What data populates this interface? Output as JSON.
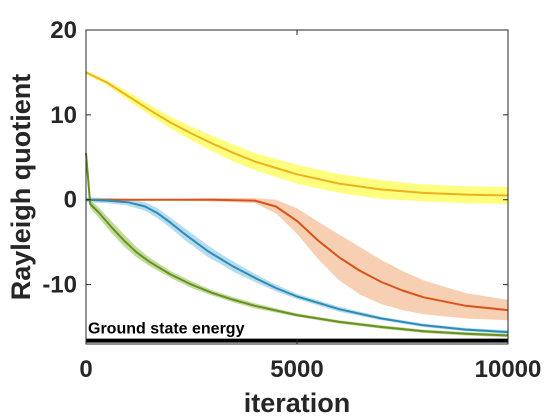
{
  "chart_data": {
    "type": "line",
    "title": "",
    "xlabel": "iteration",
    "ylabel": "Rayleigh quotient",
    "xlim": [
      0,
      10000
    ],
    "ylim": [
      -17,
      20
    ],
    "xticks": [
      0,
      5000,
      10000
    ],
    "yticks": [
      -10,
      0,
      10,
      20
    ],
    "xtick_labels": [
      "0",
      "5000",
      "10000"
    ],
    "ytick_labels": [
      "-10",
      "0",
      "10",
      "20"
    ],
    "grid": false,
    "legend": false,
    "reference_line": {
      "y": -16.6,
      "label": "Ground state energy",
      "color": "#000000"
    },
    "series": [
      {
        "color": "#EDB120",
        "band_color": "#FFFF66",
        "x": [
          0,
          500,
          1000,
          1500,
          2000,
          2500,
          3000,
          3500,
          4000,
          5000,
          6000,
          7000,
          8000,
          9000,
          10000
        ],
        "y": [
          15,
          13.8,
          12.2,
          10.6,
          9.1,
          7.8,
          6.6,
          5.5,
          4.5,
          3.0,
          1.9,
          1.2,
          0.8,
          0.6,
          0.5
        ],
        "band": [
          0.2,
          0.3,
          0.5,
          0.6,
          0.7,
          0.8,
          0.9,
          1.0,
          1.0,
          1.1,
          1.1,
          1.1,
          1.0,
          1.0,
          1.0
        ]
      },
      {
        "color": "#D95319",
        "band_color": "#F6C8A6",
        "x": [
          0,
          1000,
          2000,
          3000,
          4000,
          4500,
          5000,
          5500,
          6000,
          6500,
          7000,
          7500,
          8000,
          9000,
          10000
        ],
        "y": [
          0,
          0,
          0,
          0,
          -0.1,
          -0.8,
          -2.5,
          -4.8,
          -6.8,
          -8.4,
          -9.7,
          -10.7,
          -11.5,
          -12.5,
          -13.0
        ],
        "band": [
          0.1,
          0.1,
          0.1,
          0.2,
          0.3,
          0.8,
          1.5,
          2.2,
          2.7,
          2.8,
          2.6,
          2.3,
          2.0,
          1.5,
          1.2
        ]
      },
      {
        "color": "#2E8BB8",
        "band_color": "#A9D6EA",
        "x": [
          0,
          500,
          1000,
          1400,
          1700,
          2000,
          2300,
          2600,
          2900,
          3200,
          3500,
          4000,
          4500,
          5000,
          6000,
          7000,
          8000,
          9000,
          10000
        ],
        "y": [
          0,
          -0.1,
          -0.3,
          -0.8,
          -1.6,
          -2.7,
          -3.9,
          -5.0,
          -6.1,
          -7.0,
          -7.9,
          -9.2,
          -10.4,
          -11.4,
          -12.9,
          -14.0,
          -14.8,
          -15.3,
          -15.6
        ],
        "band": [
          0.3,
          0.3,
          0.4,
          0.5,
          0.6,
          0.6,
          0.7,
          0.7,
          0.7,
          0.6,
          0.6,
          0.5,
          0.4,
          0.3,
          0.3,
          0.2,
          0.2,
          0.2,
          0.2
        ]
      },
      {
        "color": "#6B8E23",
        "band_color": "#B5D68A",
        "x": [
          0,
          100,
          300,
          600,
          900,
          1200,
          1500,
          2000,
          2500,
          3000,
          3500,
          4000,
          5000,
          6000,
          7000,
          8000,
          9000,
          10000
        ],
        "y": [
          5.5,
          -0.5,
          -1.5,
          -3.2,
          -4.8,
          -6.2,
          -7.3,
          -8.8,
          -10.0,
          -11.0,
          -11.8,
          -12.5,
          -13.6,
          -14.4,
          -15.0,
          -15.5,
          -15.8,
          -16.0
        ],
        "band": [
          0.5,
          0.5,
          0.6,
          0.7,
          0.7,
          0.6,
          0.5,
          0.4,
          0.4,
          0.3,
          0.3,
          0.3,
          0.2,
          0.2,
          0.2,
          0.2,
          0.2,
          0.2
        ]
      }
    ]
  }
}
